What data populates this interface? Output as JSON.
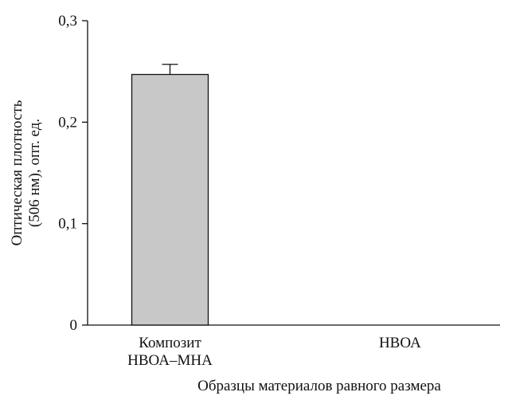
{
  "chart_data": {
    "type": "bar",
    "categories": [
      [
        "Композит",
        "НВОА–МНА"
      ],
      [
        "НВОА"
      ]
    ],
    "values": [
      0.247,
      0
    ],
    "error": [
      0.01,
      0
    ],
    "xlabel": "Образцы материалов равного размера",
    "ylabel": [
      "Оптическая плотность",
      "(506 нм), опт. ед."
    ],
    "ylim": [
      0,
      0.3
    ],
    "yticks": [
      {
        "value": 0,
        "label": "0"
      },
      {
        "value": 0.1,
        "label": "0,1"
      },
      {
        "value": 0.2,
        "label": "0,2"
      },
      {
        "value": 0.3,
        "label": "0,3"
      }
    ],
    "grid": false,
    "colors": {
      "bar": "#c8c8c8",
      "bar_edge": "#111111",
      "axis": "#111111"
    }
  }
}
